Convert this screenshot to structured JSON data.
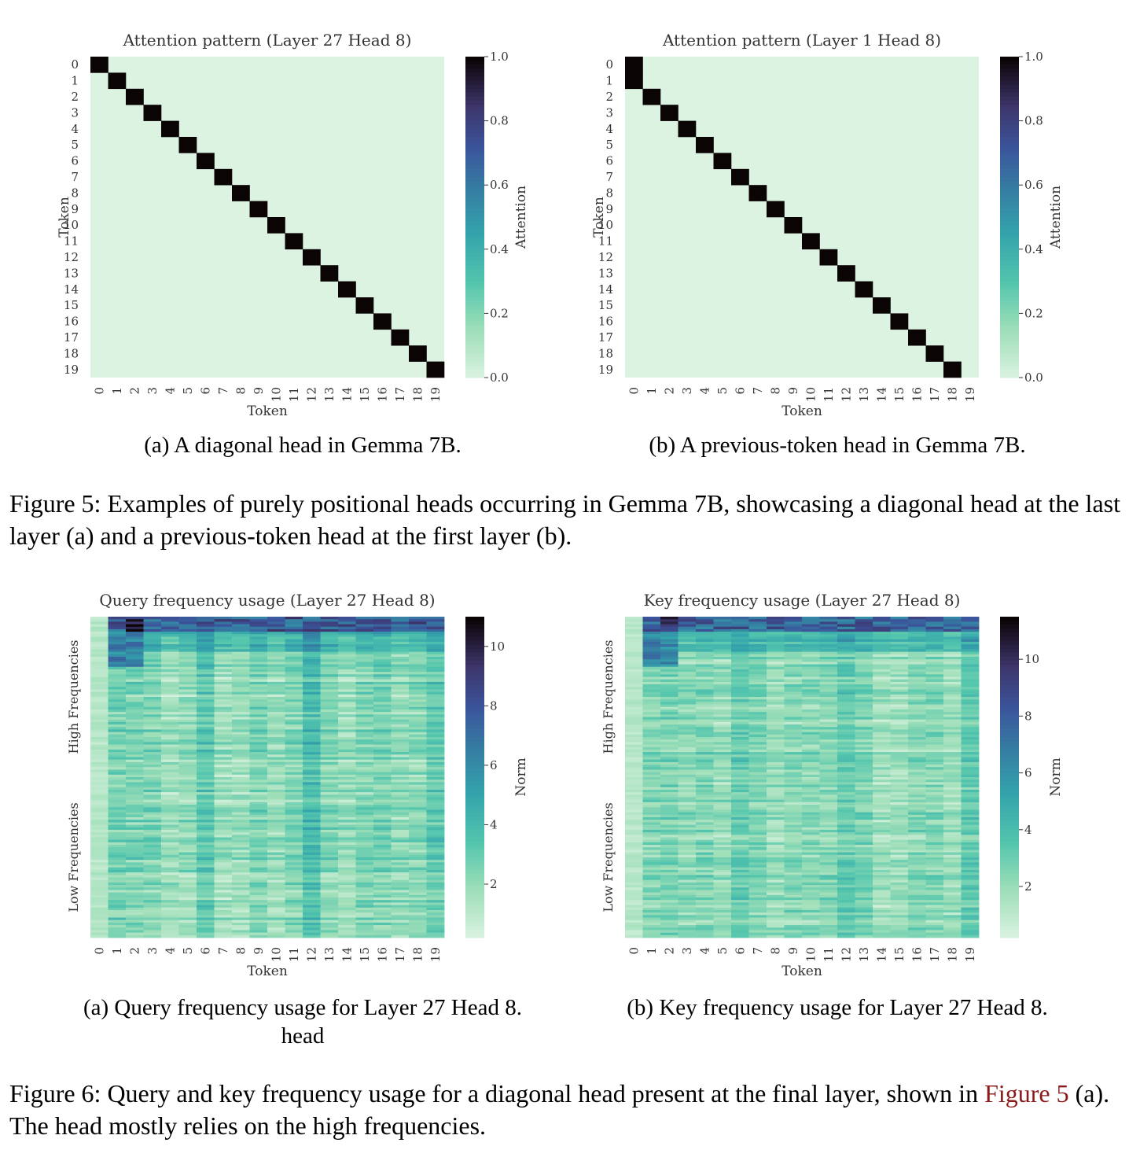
{
  "figure5": {
    "caption_label": "Figure 5:",
    "caption_text": "Examples of purely positional heads occurring in Gemma 7B, showcasing a diagonal head at the last layer (a) and a previous-token head at the first layer (b).",
    "panels": [
      {
        "subcaption": "(a) A diagonal head in Gemma 7B."
      },
      {
        "subcaption": "(b) A previous-token head in Gemma 7B."
      }
    ]
  },
  "figure6": {
    "caption_label": "Figure 6:",
    "caption_text_1": "Query and key frequency usage for a diagonal head present at the final layer, shown in",
    "caption_ref": "Figure 5",
    "caption_text_2": "(a). The head mostly relies on the high frequencies.",
    "panels": [
      {
        "subcaption_line1": "(a) Query frequency usage for Layer 27 Head 8.",
        "subcaption_line2": "head"
      },
      {
        "subcaption_line1": "(b) Key frequency usage for Layer 27 Head 8.",
        "subcaption_line2": ""
      }
    ]
  },
  "colors": {
    "cmap": "mako_r",
    "min": "#dcf3e2",
    "max": "#0b0405"
  },
  "chart_data": [
    {
      "type": "heatmap",
      "title": "Attention pattern (Layer 27 Head 8)",
      "xlabel": "Token",
      "ylabel": "Token",
      "x": [
        "0",
        "1",
        "2",
        "3",
        "4",
        "5",
        "6",
        "7",
        "8",
        "9",
        "10",
        "11",
        "12",
        "13",
        "14",
        "15",
        "16",
        "17",
        "18",
        "19"
      ],
      "y": [
        "0",
        "1",
        "2",
        "3",
        "4",
        "5",
        "6",
        "7",
        "8",
        "9",
        "10",
        "11",
        "12",
        "13",
        "14",
        "15",
        "16",
        "17",
        "18",
        "19"
      ],
      "pattern": "diagonal",
      "value_on_pattern": 1.0,
      "value_elsewhere": 0.0,
      "colorbar": {
        "label": "Attention",
        "range": [
          0,
          1
        ],
        "ticks": [
          "0.0",
          "0.2",
          "0.4",
          "0.6",
          "0.8",
          "1.0"
        ]
      }
    },
    {
      "type": "heatmap",
      "title": "Attention pattern (Layer 1 Head 8)",
      "xlabel": "Token",
      "ylabel": "Token",
      "x": [
        "0",
        "1",
        "2",
        "3",
        "4",
        "5",
        "6",
        "7",
        "8",
        "9",
        "10",
        "11",
        "12",
        "13",
        "14",
        "15",
        "16",
        "17",
        "18",
        "19"
      ],
      "y": [
        "0",
        "1",
        "2",
        "3",
        "4",
        "5",
        "6",
        "7",
        "8",
        "9",
        "10",
        "11",
        "12",
        "13",
        "14",
        "15",
        "16",
        "17",
        "18",
        "19"
      ],
      "pattern": "previous-token",
      "value_on_pattern": 1.0,
      "value_elsewhere": 0.0,
      "colorbar": {
        "label": "Attention",
        "range": [
          0,
          1
        ],
        "ticks": [
          "0.0",
          "0.2",
          "0.4",
          "0.6",
          "0.8",
          "1.0"
        ]
      }
    },
    {
      "type": "heatmap",
      "title": "Query frequency usage (Layer 27 Head 8)",
      "xlabel": "Token",
      "x": [
        "0",
        "1",
        "2",
        "3",
        "4",
        "5",
        "6",
        "7",
        "8",
        "9",
        "10",
        "11",
        "12",
        "13",
        "14",
        "15",
        "16",
        "17",
        "18",
        "19"
      ],
      "row_labels": [
        "High Frequencies",
        "Low Frequencies"
      ],
      "rows": 128,
      "value_range": [
        0.2,
        11
      ],
      "colorbar": {
        "label": "Norm",
        "range": [
          0.2,
          11
        ],
        "ticks": [
          "2",
          "4",
          "6",
          "8",
          "10"
        ]
      }
    },
    {
      "type": "heatmap",
      "title": "Key frequency usage (Layer 27 Head 8)",
      "xlabel": "Token",
      "x": [
        "0",
        "1",
        "2",
        "3",
        "4",
        "5",
        "6",
        "7",
        "8",
        "9",
        "10",
        "11",
        "12",
        "13",
        "14",
        "15",
        "16",
        "17",
        "18",
        "19"
      ],
      "row_labels": [
        "High Frequencies",
        "Low Frequencies"
      ],
      "rows": 128,
      "value_range": [
        0.2,
        11.5
      ],
      "colorbar": {
        "label": "Norm",
        "range": [
          0.2,
          11.5
        ],
        "ticks": [
          "2",
          "4",
          "6",
          "8",
          "10"
        ]
      }
    }
  ]
}
